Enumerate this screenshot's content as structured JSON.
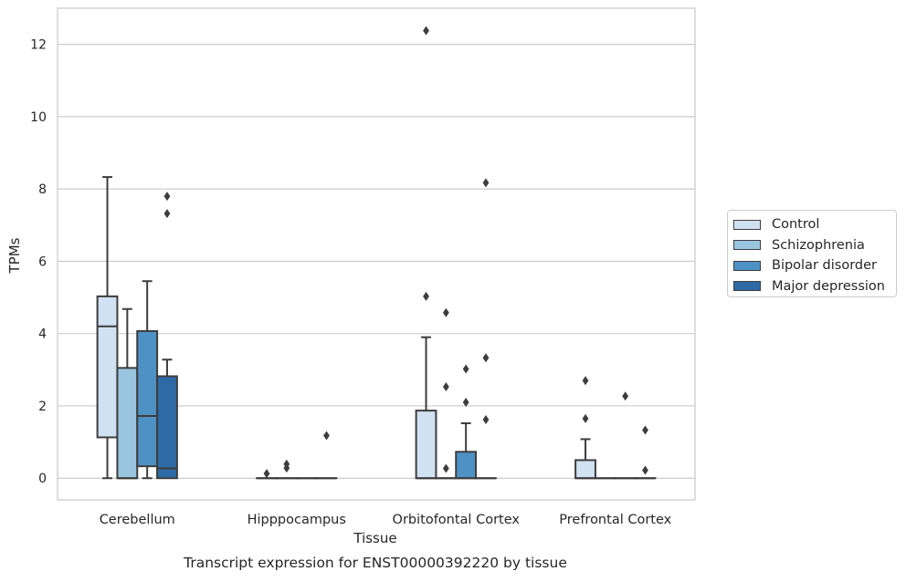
{
  "chart_data": {
    "type": "boxplot",
    "title": "Transcript expression for ENST00000392220 by tissue",
    "xlabel": "Tissue",
    "ylabel": "TPMs",
    "ylim": [
      -0.6,
      13.0
    ],
    "yticks": [
      0,
      2,
      4,
      6,
      8,
      10,
      12
    ],
    "categories": [
      "Cerebellum",
      "Hipppocampus",
      "Orbitofontal Cortex",
      "Prefrontal Cortex"
    ],
    "grid": "horizontal",
    "legend_position": "right",
    "series": [
      {
        "name": "Control",
        "color": "#d0e1f2",
        "boxes": [
          {
            "whisker_low": 0,
            "q1": 1.13,
            "median": 4.2,
            "q3": 5.03,
            "whisker_high": 8.33,
            "outliers": []
          },
          {
            "whisker_low": 0,
            "q1": 0,
            "median": 0,
            "q3": 0,
            "whisker_high": 0,
            "outliers": [
              0.13
            ]
          },
          {
            "whisker_low": 0,
            "q1": 0,
            "median": 0,
            "q3": 1.87,
            "whisker_high": 3.9,
            "outliers": [
              5.03,
              12.38
            ]
          },
          {
            "whisker_low": 0,
            "q1": 0,
            "median": 0,
            "q3": 0.5,
            "whisker_high": 1.08,
            "outliers": [
              1.65,
              2.7
            ]
          }
        ]
      },
      {
        "name": "Schizophrenia",
        "color": "#9ac5e0",
        "boxes": [
          {
            "whisker_low": 0,
            "q1": 0,
            "median": 0,
            "q3": 3.05,
            "whisker_high": 4.68,
            "outliers": []
          },
          {
            "whisker_low": 0,
            "q1": 0,
            "median": 0,
            "q3": 0,
            "whisker_high": 0,
            "outliers": [
              0.28,
              0.39
            ]
          },
          {
            "whisker_low": 0,
            "q1": 0,
            "median": 0,
            "q3": 0,
            "whisker_high": 0,
            "outliers": [
              0.27,
              2.53,
              4.58
            ]
          },
          {
            "whisker_low": 0,
            "q1": 0,
            "median": 0,
            "q3": 0,
            "whisker_high": 0,
            "outliers": []
          }
        ]
      },
      {
        "name": "Bipolar disorder",
        "color": "#4e91c5",
        "boxes": [
          {
            "whisker_low": 0,
            "q1": 0.33,
            "median": 1.72,
            "q3": 4.07,
            "whisker_high": 5.45,
            "outliers": []
          },
          {
            "whisker_low": 0,
            "q1": 0,
            "median": 0,
            "q3": 0,
            "whisker_high": 0,
            "outliers": []
          },
          {
            "whisker_low": 0,
            "q1": 0,
            "median": 0,
            "q3": 0.73,
            "whisker_high": 1.52,
            "outliers": [
              2.1,
              3.02
            ]
          },
          {
            "whisker_low": 0,
            "q1": 0,
            "median": 0,
            "q3": 0,
            "whisker_high": 0,
            "outliers": [
              2.27
            ]
          }
        ]
      },
      {
        "name": "Major depression",
        "color": "#2e6ba6",
        "boxes": [
          {
            "whisker_low": 0,
            "q1": 0,
            "median": 0.27,
            "q3": 2.82,
            "whisker_high": 3.28,
            "outliers": [
              7.32,
              7.8
            ]
          },
          {
            "whisker_low": 0,
            "q1": 0,
            "median": 0,
            "q3": 0,
            "whisker_high": 0,
            "outliers": [
              1.18
            ]
          },
          {
            "whisker_low": 0,
            "q1": 0,
            "median": 0,
            "q3": 0,
            "whisker_high": 0,
            "outliers": [
              1.62,
              3.33,
              8.17
            ]
          },
          {
            "whisker_low": 0,
            "q1": 0,
            "median": 0,
            "q3": 0,
            "whisker_high": 0,
            "outliers": [
              0.22,
              1.33
            ]
          }
        ]
      }
    ]
  }
}
